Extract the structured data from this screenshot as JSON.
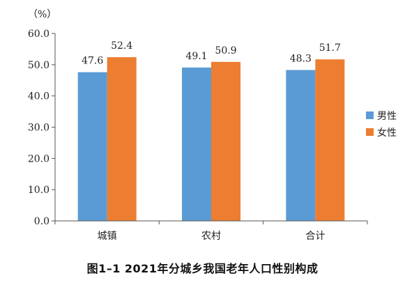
{
  "caption": "图1–1 2021年分城乡我国老年人口性别构成",
  "chart_data": {
    "type": "bar",
    "title": "",
    "unit": "（%）",
    "categories": [
      "城镇",
      "农村",
      "合计"
    ],
    "series": [
      {
        "name": "男性",
        "color": "#5b9bd5",
        "values": [
          47.6,
          49.1,
          48.3
        ],
        "labels": [
          "47.6",
          "49.1",
          "48.3"
        ]
      },
      {
        "name": "女性",
        "color": "#ed7d31",
        "values": [
          52.4,
          50.9,
          51.7
        ],
        "labels": [
          "52.4",
          "50.9",
          "51.7"
        ]
      }
    ],
    "ylim": [
      0,
      60
    ],
    "yticks": [
      0,
      10,
      20,
      30,
      40,
      50,
      60
    ],
    "ytick_labels": [
      "0.0",
      "10.0",
      "20.0",
      "30.0",
      "40.0",
      "50.0",
      "60.0"
    ],
    "xlabel": "",
    "ylabel": "",
    "grid": false,
    "legend_position": "right"
  }
}
